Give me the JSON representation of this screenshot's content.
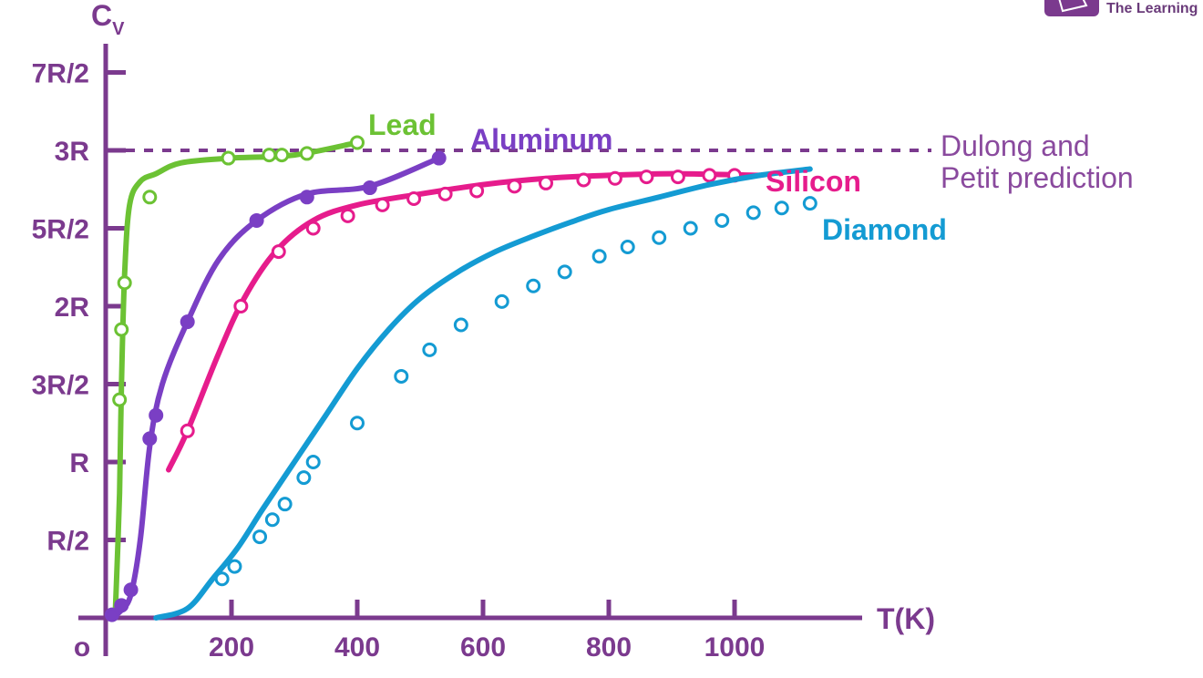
{
  "colors": {
    "axis": "#7b3a8e",
    "annotation": "#8a4a9e",
    "lead": "#6cc234",
    "aluminum": "#7a3fc4",
    "silicon": "#e61c8c",
    "diamond": "#149bd3"
  },
  "logo": {
    "icon": "publisher-logo-icon",
    "text": "The Learning"
  },
  "chart_data": {
    "type": "line",
    "title": "",
    "xlabel": "T(K)",
    "ylabel": "C",
    "ylabel_subscript": "V",
    "xlim": [
      0,
      1200
    ],
    "ylim_in_R": [
      0,
      3.5
    ],
    "x_ticks": [
      {
        "value": 0,
        "label": "o"
      },
      {
        "value": 200,
        "label": "200"
      },
      {
        "value": 400,
        "label": "400"
      },
      {
        "value": 600,
        "label": "600"
      },
      {
        "value": 800,
        "label": "800"
      },
      {
        "value": 1000,
        "label": "1000"
      }
    ],
    "y_ticks": [
      {
        "value": 0.5,
        "label": "R/2"
      },
      {
        "value": 1,
        "label": "R"
      },
      {
        "value": 1.5,
        "label": "3R/2"
      },
      {
        "value": 2,
        "label": "2R"
      },
      {
        "value": 2.5,
        "label": "5R/2"
      },
      {
        "value": 3,
        "label": "3R"
      },
      {
        "value": 3.5,
        "label": "7R/2"
      }
    ],
    "reference_line": {
      "value": 3,
      "label_lines": [
        "Dulong and",
        "Petit prediction"
      ]
    },
    "series": [
      {
        "name": "Lead",
        "color_key": "lead",
        "marker_fill": "#ffffff",
        "curve": [
          [
            15,
            0
          ],
          [
            22,
            0.8
          ],
          [
            25,
            1.5
          ],
          [
            30,
            2.2
          ],
          [
            38,
            2.65
          ],
          [
            55,
            2.8
          ],
          [
            80,
            2.85
          ],
          [
            120,
            2.92
          ],
          [
            200,
            2.95
          ],
          [
            300,
            2.97
          ],
          [
            400,
            3.05
          ]
        ],
        "points": [
          [
            22,
            1.4
          ],
          [
            25,
            1.85
          ],
          [
            30,
            2.15
          ],
          [
            70,
            2.7
          ],
          [
            195,
            2.95
          ],
          [
            260,
            2.97
          ],
          [
            280,
            2.97
          ],
          [
            320,
            2.98
          ],
          [
            400,
            3.05
          ]
        ]
      },
      {
        "name": "Aluminum",
        "color_key": "aluminum",
        "marker_fill": "same",
        "curve": [
          [
            10,
            0
          ],
          [
            25,
            0.05
          ],
          [
            40,
            0.15
          ],
          [
            55,
            0.5
          ],
          [
            70,
            1.1
          ],
          [
            90,
            1.5
          ],
          [
            130,
            1.9
          ],
          [
            180,
            2.3
          ],
          [
            240,
            2.55
          ],
          [
            320,
            2.72
          ],
          [
            420,
            2.77
          ],
          [
            530,
            2.95
          ]
        ],
        "points": [
          [
            10,
            0.02
          ],
          [
            25,
            0.08
          ],
          [
            40,
            0.18
          ],
          [
            70,
            1.15
          ],
          [
            80,
            1.3
          ],
          [
            130,
            1.9
          ],
          [
            240,
            2.55
          ],
          [
            320,
            2.7
          ],
          [
            420,
            2.76
          ],
          [
            530,
            2.95
          ]
        ]
      },
      {
        "name": "Silicon",
        "color_key": "silicon",
        "marker_fill": "#ffffff",
        "curve": [
          [
            100,
            0.95
          ],
          [
            130,
            1.2
          ],
          [
            180,
            1.7
          ],
          [
            220,
            2.05
          ],
          [
            270,
            2.35
          ],
          [
            330,
            2.55
          ],
          [
            400,
            2.65
          ],
          [
            500,
            2.72
          ],
          [
            600,
            2.78
          ],
          [
            700,
            2.82
          ],
          [
            800,
            2.84
          ],
          [
            900,
            2.85
          ],
          [
            1040,
            2.84
          ]
        ],
        "points": [
          [
            130,
            1.2
          ],
          [
            215,
            2.0
          ],
          [
            275,
            2.35
          ],
          [
            330,
            2.5
          ],
          [
            385,
            2.58
          ],
          [
            440,
            2.65
          ],
          [
            490,
            2.69
          ],
          [
            540,
            2.72
          ],
          [
            590,
            2.74
          ],
          [
            650,
            2.77
          ],
          [
            700,
            2.79
          ],
          [
            760,
            2.81
          ],
          [
            810,
            2.82
          ],
          [
            860,
            2.83
          ],
          [
            910,
            2.83
          ],
          [
            960,
            2.84
          ],
          [
            1000,
            2.84
          ]
        ]
      },
      {
        "name": "Diamond",
        "color_key": "diamond",
        "marker_fill": "#ffffff",
        "curve": [
          [
            80,
            0
          ],
          [
            130,
            0.06
          ],
          [
            170,
            0.25
          ],
          [
            210,
            0.45
          ],
          [
            250,
            0.7
          ],
          [
            300,
            1.0
          ],
          [
            350,
            1.3
          ],
          [
            400,
            1.6
          ],
          [
            450,
            1.85
          ],
          [
            500,
            2.05
          ],
          [
            560,
            2.22
          ],
          [
            620,
            2.35
          ],
          [
            680,
            2.45
          ],
          [
            740,
            2.54
          ],
          [
            800,
            2.62
          ],
          [
            880,
            2.7
          ],
          [
            960,
            2.78
          ],
          [
            1040,
            2.84
          ],
          [
            1120,
            2.88
          ]
        ],
        "points": [
          [
            185,
            0.25
          ],
          [
            205,
            0.33
          ],
          [
            245,
            0.52
          ],
          [
            265,
            0.63
          ],
          [
            285,
            0.73
          ],
          [
            315,
            0.9
          ],
          [
            330,
            1.0
          ],
          [
            400,
            1.25
          ],
          [
            470,
            1.55
          ],
          [
            515,
            1.72
          ],
          [
            565,
            1.88
          ],
          [
            630,
            2.03
          ],
          [
            680,
            2.13
          ],
          [
            730,
            2.22
          ],
          [
            785,
            2.32
          ],
          [
            830,
            2.38
          ],
          [
            880,
            2.44
          ],
          [
            930,
            2.5
          ],
          [
            980,
            2.55
          ],
          [
            1030,
            2.6
          ],
          [
            1075,
            2.63
          ],
          [
            1120,
            2.66
          ]
        ]
      }
    ]
  }
}
